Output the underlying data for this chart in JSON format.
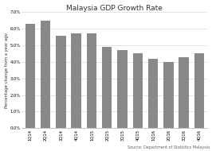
{
  "title": "Malaysia GDP Growth Rate",
  "categories": [
    "1Q14",
    "2Q14",
    "3Q14",
    "4Q14",
    "1Q15",
    "2Q15",
    "3Q15",
    "4Q15",
    "1Q16",
    "2Q16",
    "3Q16",
    "4Q16"
  ],
  "values": [
    6.3,
    6.5,
    5.6,
    5.7,
    5.7,
    4.9,
    4.7,
    4.5,
    4.2,
    4.0,
    4.3,
    4.5
  ],
  "bar_color": "#898989",
  "ylabel": "Percentage change from a year ago",
  "ylim": [
    0.0,
    7.0
  ],
  "yticks": [
    0.0,
    1.0,
    2.0,
    3.0,
    4.0,
    5.0,
    6.0,
    7.0
  ],
  "source": "Source: Department of Statistics Malaysia",
  "background_color": "#ffffff",
  "title_fontsize": 6.5,
  "ylabel_fontsize": 3.8,
  "tick_fontsize": 3.8,
  "source_fontsize": 3.5
}
